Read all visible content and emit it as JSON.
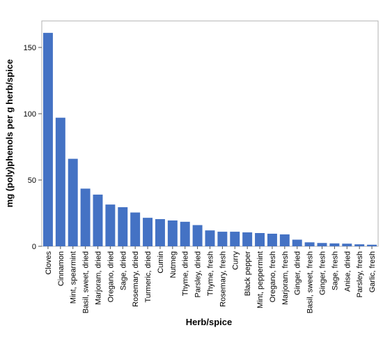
{
  "chart_data": {
    "type": "bar",
    "title": "",
    "xlabel": "Herb/spice",
    "ylabel": "mg (poly)phenols per g herb/spice",
    "ylim": [
      0,
      170
    ],
    "yticks": [
      0,
      50,
      100,
      150
    ],
    "grid": false,
    "bar_color": "#4472C4",
    "categories": [
      "Cloves",
      "Cinnamon",
      "Mint, spearmint",
      "Basil, sweet, dried",
      "Marjoram, dried",
      "Oregano, dried",
      "Sage, dried",
      "Rosemary, dried",
      "Turmeric, dried",
      "Cumin",
      "Nutmeg",
      "Thyme, dried",
      "Parsley, dried",
      "Thyme, fresh",
      "Rosemary, fresh",
      "Curry",
      "Black pepper",
      "Mint, peppermint",
      "Oregano, fresh",
      "Marjoram, fresh",
      "Ginger, dried",
      "Basil, sweet, fresh",
      "Ginger, fresh",
      "Sage, fresh",
      "Anise, dried",
      "Parsley, fresh",
      "Garlic, fresh"
    ],
    "values": [
      161,
      97,
      66,
      43.5,
      39,
      31.5,
      29.5,
      25.5,
      21.5,
      20.5,
      19.5,
      18.5,
      16,
      12,
      11,
      11,
      10.5,
      10,
      9.5,
      9,
      5,
      3,
      2.5,
      2.2,
      2,
      1.5,
      1.2
    ]
  }
}
